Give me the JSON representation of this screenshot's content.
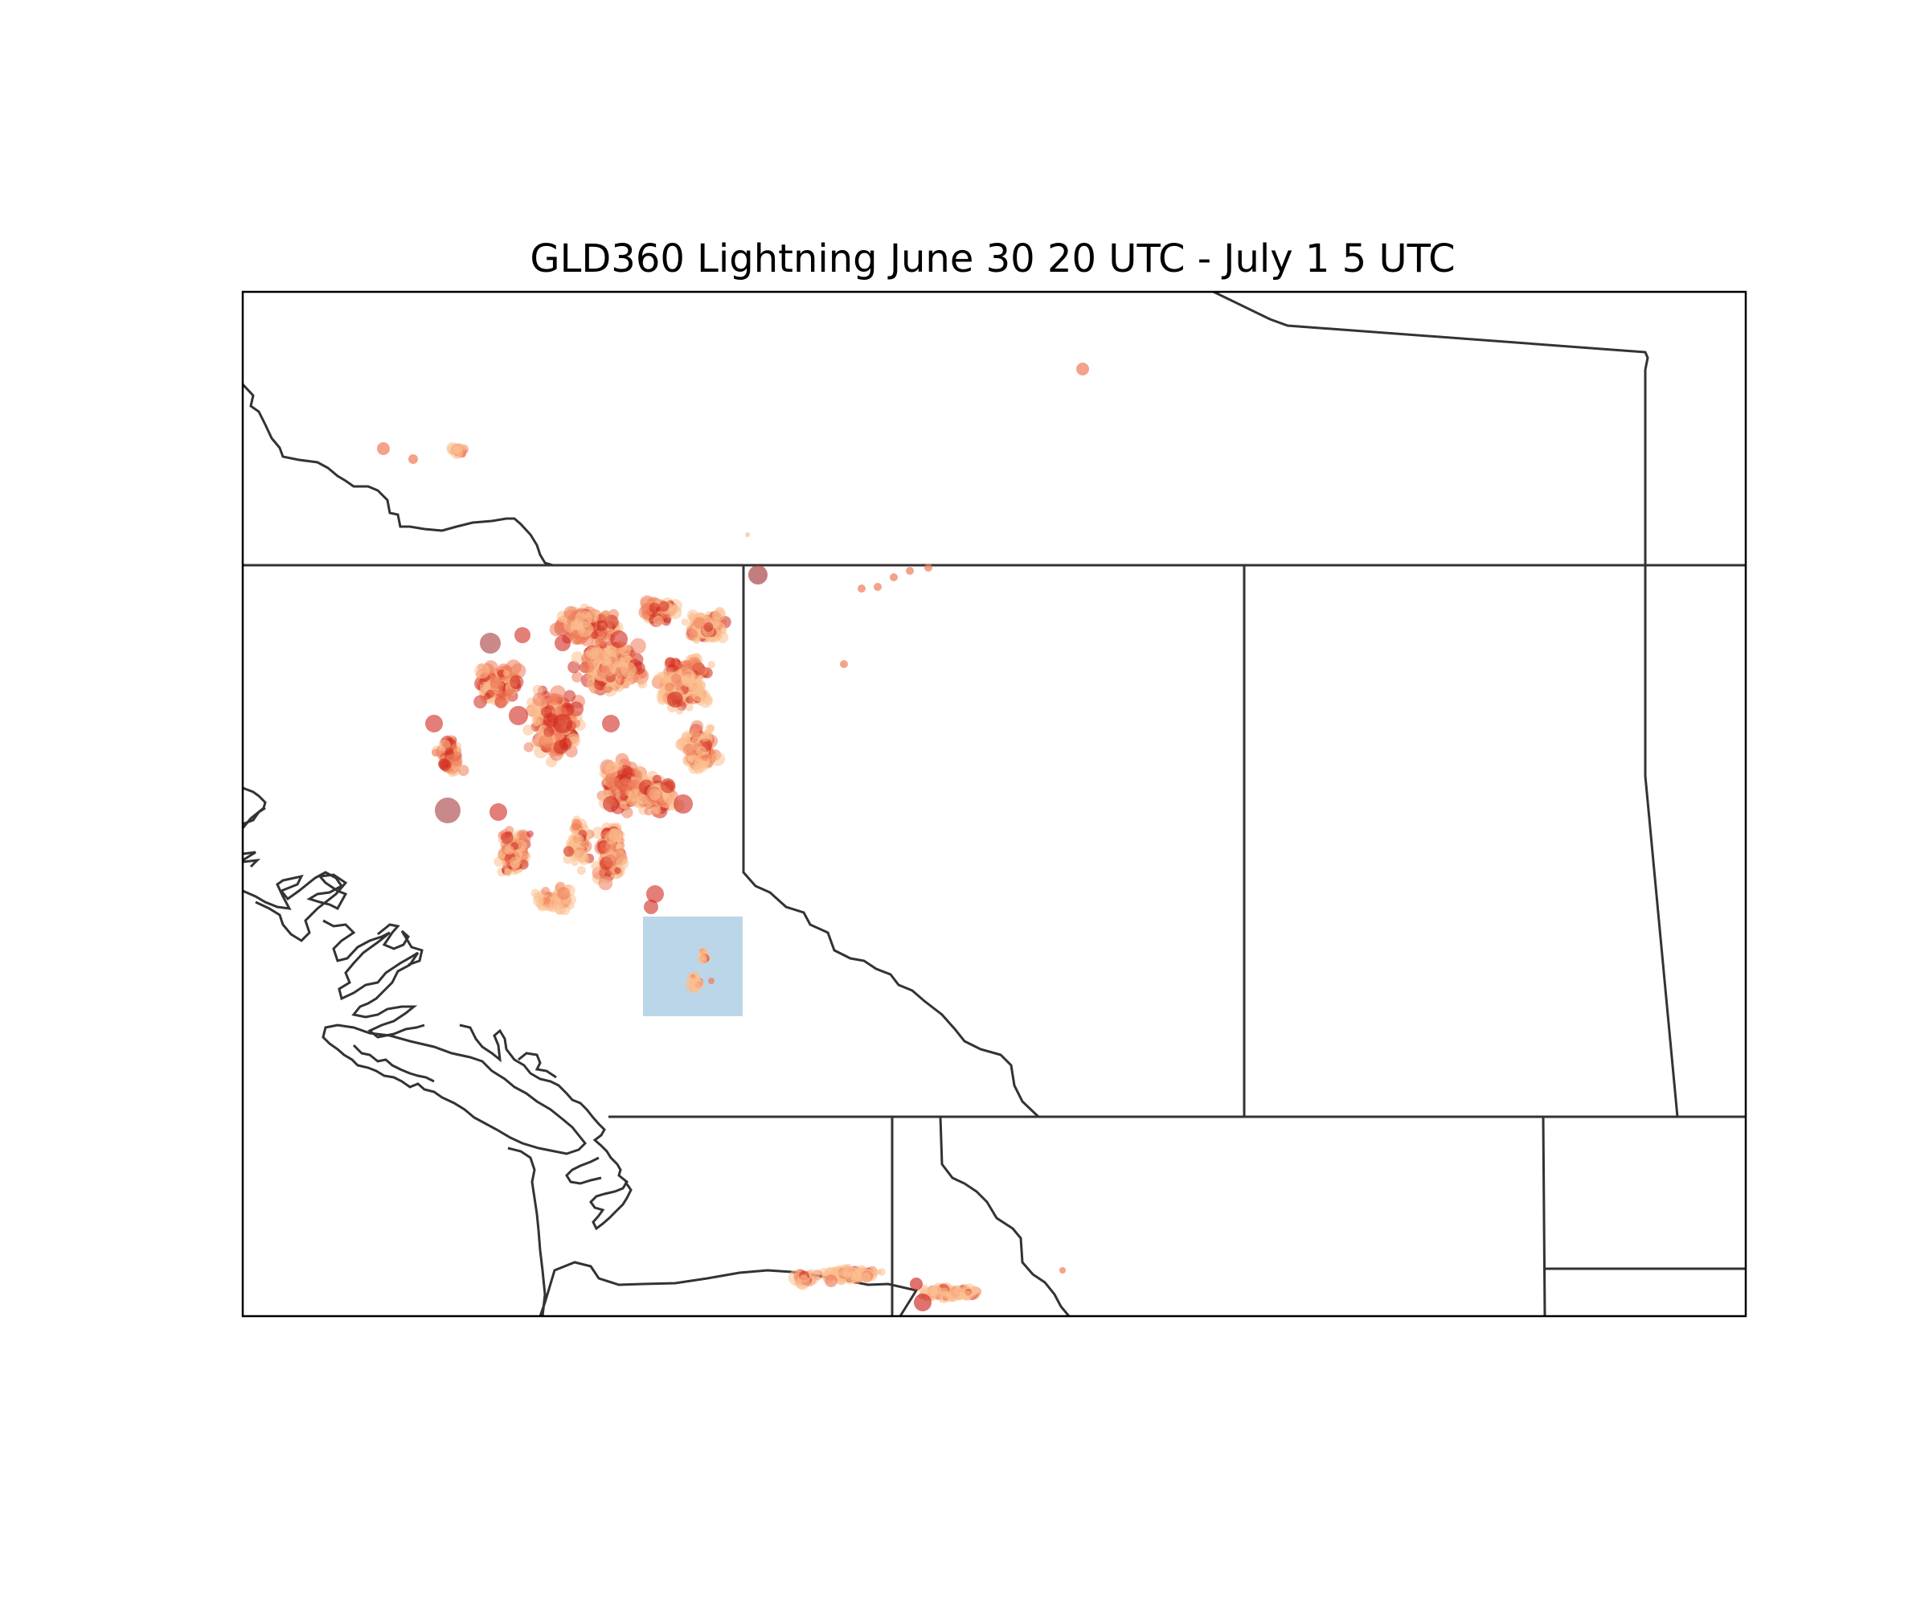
{
  "map": {
    "title": "GLD360 Lightning June 30 20 UTC - July 1 5 UTC",
    "colors": {
      "frame": "#000000",
      "border": "#333333",
      "highlight_box": "#b7d4e8",
      "strike_light": "#fbbf8f",
      "strike_medium": "#ef7b5a",
      "strike_dark": "#d0281e",
      "strike_darkest": "#a5383a"
    },
    "features": [
      "coastline",
      "state-province-borders",
      "lightning-strikes",
      "highlight-box"
    ]
  }
}
